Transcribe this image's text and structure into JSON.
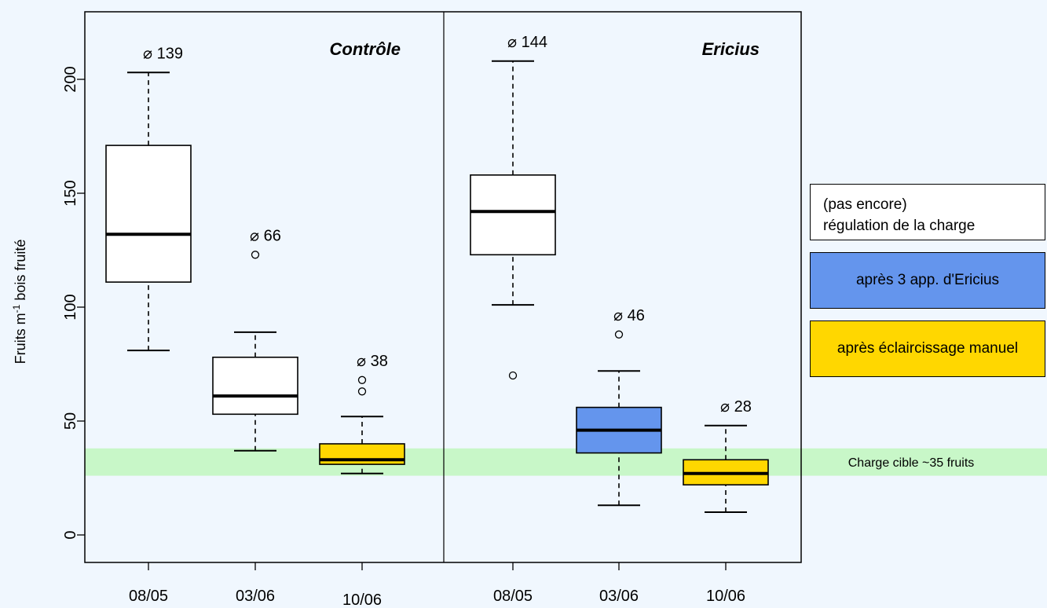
{
  "chart_data": {
    "type": "boxplot",
    "ylabel": "Fruits m⁻¹ bois fruité",
    "ylabel_main": "Fruits m",
    "ylabel_sup": "-1",
    "ylabel_rest": " bois fruité",
    "ylim": [
      0,
      200
    ],
    "yticks": [
      0,
      50,
      100,
      150,
      200
    ],
    "groups": [
      {
        "name": "Contrôle",
        "boxes": [
          {
            "x": "08/05",
            "mean_label": "⌀ 139",
            "fill": "#ffffff",
            "min": 81,
            "q1": 111,
            "median": 132,
            "q3": 171,
            "max": 203,
            "outliers": []
          },
          {
            "x": "03/06",
            "mean_label": "⌀ 66",
            "fill": "#ffffff",
            "min": 37,
            "q1": 53,
            "median": 61,
            "q3": 78,
            "max": 89,
            "outliers": [
              123
            ]
          },
          {
            "x": "10/06",
            "mean_label": "⌀ 38",
            "fill": "#ffd700",
            "min": 27,
            "q1": 31,
            "median": 33,
            "q3": 40,
            "max": 52,
            "outliers": [
              63,
              68
            ]
          }
        ]
      },
      {
        "name": "Ericius",
        "boxes": [
          {
            "x": "08/05",
            "mean_label": "⌀ 144",
            "fill": "#ffffff",
            "min": 101,
            "q1": 123,
            "median": 142,
            "q3": 158,
            "max": 208,
            "outliers": [
              70
            ]
          },
          {
            "x": "03/06",
            "mean_label": "⌀ 46",
            "fill": "#6495ed",
            "min": 13,
            "q1": 36,
            "median": 46,
            "q3": 56,
            "max": 72,
            "outliers": [
              88
            ]
          },
          {
            "x": "10/06",
            "mean_label": "⌀ 28",
            "fill": "#ffd700",
            "min": 10,
            "q1": 22,
            "median": 27,
            "q3": 33,
            "max": 48,
            "outliers": []
          }
        ]
      }
    ],
    "target_band": {
      "min": 26,
      "max": 38,
      "label": "Charge cible ~35 fruits",
      "color": "#c8f7c8"
    },
    "legend": [
      {
        "label_lines": [
          "(pas encore)",
          "régulation de la charge"
        ],
        "color": "#ffffff"
      },
      {
        "label_lines": [
          "après 3 app. d'Ericius"
        ],
        "color": "#6495ed"
      },
      {
        "label_lines": [
          "après éclaircissage manuel"
        ],
        "color": "#ffd700"
      }
    ],
    "grid": false
  }
}
